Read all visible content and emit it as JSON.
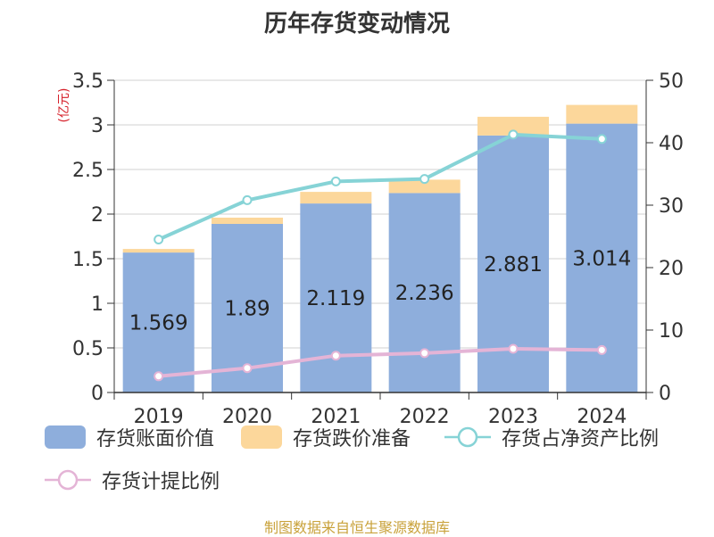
{
  "title": "历年存货变动情况",
  "source": "制图数据来自恒生聚源数据库",
  "colors": {
    "book_value": "#8eaedc",
    "impairment": "#fcd79b",
    "ratio_net_assets": "#86d3d6",
    "ratio_provision": "#e4b4d6",
    "axis_unit": "#d6202a"
  },
  "legend": {
    "book_value": "存货账面价值",
    "impairment": "存货跌价准备",
    "ratio_net_assets": "存货占净资产比例",
    "ratio_provision": "存货计提比例"
  },
  "chart_data": {
    "type": "bar",
    "categories": [
      "2019",
      "2020",
      "2021",
      "2022",
      "2023",
      "2024"
    ],
    "series": [
      {
        "name": "存货账面价值",
        "type": "bar",
        "axis": "left",
        "stack": "inv",
        "values": [
          1.569,
          1.89,
          2.119,
          2.236,
          2.881,
          3.014
        ]
      },
      {
        "name": "存货跌价准备",
        "type": "bar",
        "axis": "left",
        "stack": "inv",
        "values": [
          0.04,
          0.07,
          0.13,
          0.15,
          0.21,
          0.21
        ]
      },
      {
        "name": "存货占净资产比例",
        "type": "line",
        "axis": "right",
        "values": [
          24.5,
          30.8,
          33.8,
          34.2,
          41.3,
          40.6
        ]
      },
      {
        "name": "存货计提比例",
        "type": "line",
        "axis": "right",
        "values": [
          2.6,
          3.9,
          5.9,
          6.3,
          7.0,
          6.8
        ]
      }
    ],
    "data_labels": [
      "1.569",
      "1.89",
      "2.119",
      "2.236",
      "2.881",
      "3.014"
    ],
    "y_left": {
      "label": "(亿元)",
      "min": 0,
      "max": 3.5,
      "ticks": [
        "0",
        "0.5",
        "1",
        "1.5",
        "2",
        "2.5",
        "3",
        "3.5"
      ]
    },
    "y_right": {
      "min": 0,
      "max": 50,
      "ticks": [
        "0",
        "10",
        "20",
        "30",
        "40",
        "50"
      ]
    },
    "grid": true,
    "legend_position": "bottom"
  }
}
